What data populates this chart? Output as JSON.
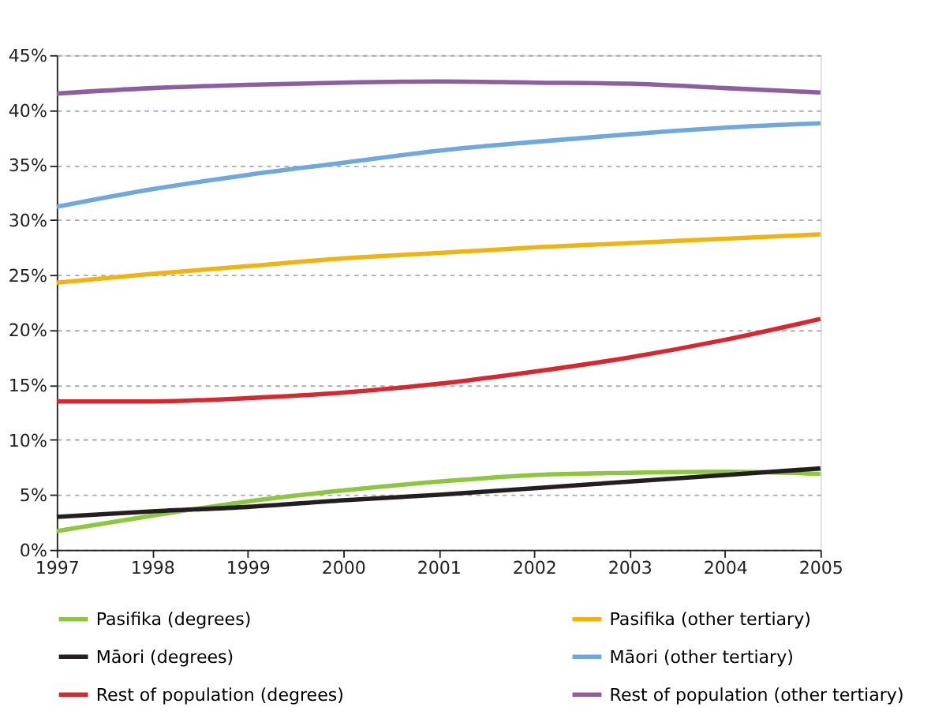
{
  "chart_data": {
    "type": "line",
    "x": [
      1997,
      1998,
      1999,
      2000,
      2001,
      2002,
      2003,
      2004,
      2005
    ],
    "series": [
      {
        "name": "Pasifika (degrees)",
        "color": "#8dc63f",
        "values": [
          1.7,
          3.1,
          4.4,
          5.4,
          6.2,
          6.8,
          7.0,
          7.1,
          6.9
        ]
      },
      {
        "name": "Pasifika (other tertiary)",
        "color": "#f0b310",
        "values": [
          24.3,
          25.1,
          25.8,
          26.5,
          27.0,
          27.5,
          27.9,
          28.3,
          28.7
        ]
      },
      {
        "name": "Māori (degrees)",
        "color": "#231f20",
        "values": [
          3.0,
          3.5,
          3.9,
          4.5,
          5.0,
          5.6,
          6.2,
          6.8,
          7.4
        ]
      },
      {
        "name": "Māori (other tertiary)",
        "color": "#6fa8dc",
        "values": [
          31.2,
          32.8,
          34.1,
          35.2,
          36.3,
          37.1,
          37.8,
          38.4,
          38.8
        ]
      },
      {
        "name": "Rest of population (degrees)",
        "color": "#d7282f",
        "values": [
          13.5,
          13.5,
          13.8,
          14.3,
          15.1,
          16.2,
          17.5,
          19.1,
          21.0
        ]
      },
      {
        "name": "Rest of population (other tertiary)",
        "color": "#8e5ea2",
        "values": [
          41.5,
          42.0,
          42.3,
          42.5,
          42.6,
          42.5,
          42.4,
          42.0,
          41.6
        ]
      }
    ],
    "xlim": [
      1997,
      2005
    ],
    "xticks": [
      1997,
      1998,
      1999,
      2000,
      2001,
      2002,
      2003,
      2004,
      2005
    ],
    "ylim": [
      0,
      45
    ],
    "yticks": [
      {
        "value": 0,
        "label": "0%"
      },
      {
        "value": 5,
        "label": "5%"
      },
      {
        "value": 10,
        "label": "10%"
      },
      {
        "value": 15,
        "label": "15%"
      },
      {
        "value": 20,
        "label": "20%"
      },
      {
        "value": 25,
        "label": "25%"
      },
      {
        "value": 30,
        "label": "30%"
      },
      {
        "value": 35,
        "label": "35%"
      },
      {
        "value": 40,
        "label": "40%"
      },
      {
        "value": 45,
        "label": "45%"
      }
    ],
    "grid": "y",
    "legend": "bottom",
    "marker": "none",
    "line_style": "solid"
  }
}
